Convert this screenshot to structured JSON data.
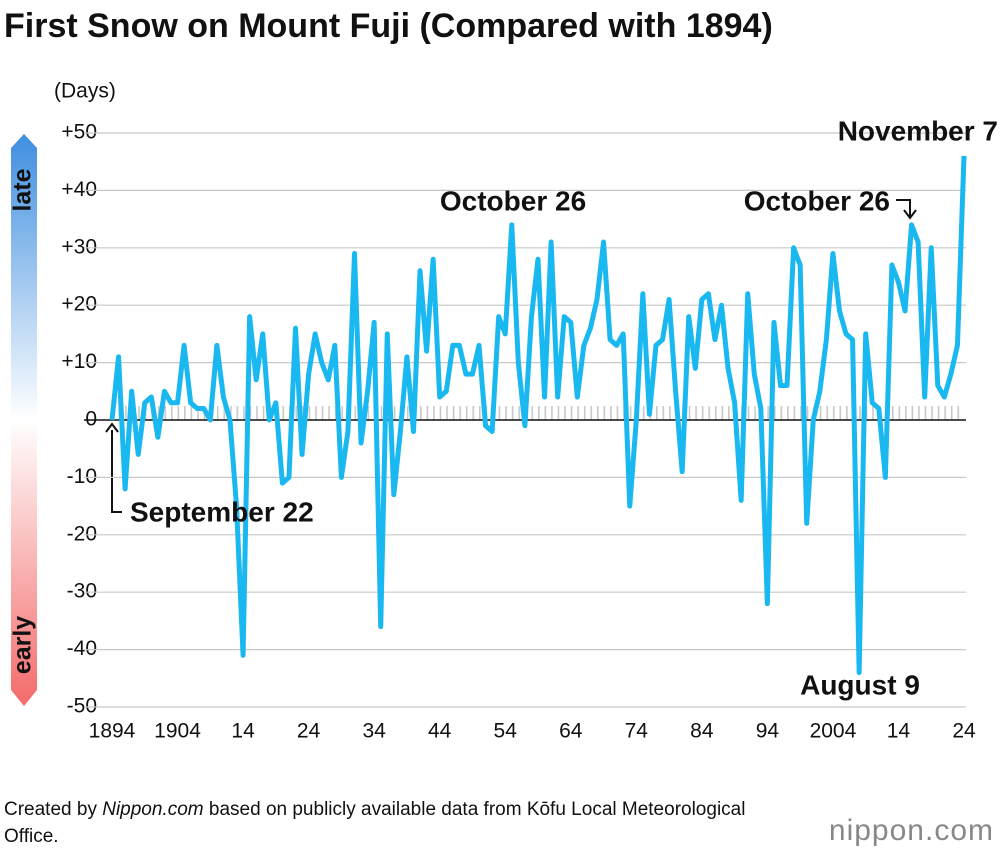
{
  "chart_data": {
    "type": "line",
    "title": "First Snow on Mount Fuji (Compared with 1894)",
    "y_axis_label": "(Days)",
    "late_label": "late",
    "early_label": "early",
    "annotations": [
      "September 22",
      "October 26",
      "October 26",
      "November 7",
      "August 9"
    ],
    "footer": {
      "prefix": "Created by",
      "source": "Nippon.com",
      "rest": "based on publicly available data from Kōfu Local Meteorological Office."
    },
    "logo": "nippon.com",
    "color": "#1ab8f0",
    "grid": true,
    "xlim": [
      1894,
      2024
    ],
    "xticks": [
      {
        "value": 1894,
        "label": "1894"
      },
      {
        "value": 1904,
        "label": "1904"
      },
      {
        "value": 1914,
        "label": "14"
      },
      {
        "value": 1924,
        "label": "24"
      },
      {
        "value": 1934,
        "label": "34"
      },
      {
        "value": 1944,
        "label": "44"
      },
      {
        "value": 1954,
        "label": "54"
      },
      {
        "value": 1964,
        "label": "64"
      },
      {
        "value": 1974,
        "label": "74"
      },
      {
        "value": 1984,
        "label": "84"
      },
      {
        "value": 1994,
        "label": "94"
      },
      {
        "value": 2004,
        "label": "2004"
      },
      {
        "value": 2014,
        "label": "14"
      },
      {
        "value": 2024,
        "label": "24"
      }
    ],
    "ylim": [
      -50,
      50
    ],
    "yticks": [
      -50,
      -40,
      -30,
      -20,
      -10,
      0,
      {
        "value": 10,
        "label": "+10"
      },
      {
        "value": 20,
        "label": "+20"
      },
      {
        "value": 30,
        "label": "+30"
      },
      {
        "value": 40,
        "label": "+40"
      },
      {
        "value": 50,
        "label": "+50"
      }
    ],
    "x": [
      1894,
      1895,
      1896,
      1897,
      1898,
      1899,
      1900,
      1901,
      1902,
      1903,
      1904,
      1905,
      1906,
      1907,
      1908,
      1909,
      1910,
      1911,
      1912,
      1913,
      1914,
      1915,
      1916,
      1917,
      1918,
      1919,
      1920,
      1921,
      1922,
      1923,
      1924,
      1925,
      1926,
      1927,
      1928,
      1929,
      1930,
      1931,
      1932,
      1933,
      1934,
      1935,
      1936,
      1937,
      1938,
      1939,
      1940,
      1941,
      1942,
      1943,
      1944,
      1945,
      1946,
      1947,
      1948,
      1949,
      1950,
      1951,
      1952,
      1953,
      1954,
      1955,
      1956,
      1957,
      1958,
      1959,
      1960,
      1961,
      1962,
      1963,
      1964,
      1965,
      1966,
      1967,
      1968,
      1969,
      1970,
      1971,
      1972,
      1973,
      1974,
      1975,
      1976,
      1977,
      1978,
      1979,
      1980,
      1981,
      1982,
      1983,
      1984,
      1985,
      1986,
      1987,
      1988,
      1989,
      1990,
      1991,
      1992,
      1993,
      1994,
      1995,
      1996,
      1997,
      1998,
      1999,
      2000,
      2001,
      2002,
      2003,
      2004,
      2005,
      2006,
      2007,
      2008,
      2009,
      2010,
      2011,
      2012,
      2013,
      2014,
      2015,
      2016,
      2017,
      2018,
      2019,
      2020,
      2021,
      2022,
      2023,
      2024
    ],
    "values": [
      0,
      11,
      -12,
      5,
      -6,
      3,
      4,
      -3,
      5,
      3,
      3,
      13,
      3,
      2,
      2,
      0,
      13,
      4,
      0,
      -15,
      -41,
      18,
      7,
      15,
      0,
      3,
      -11,
      -10,
      16,
      -6,
      8,
      15,
      10,
      7,
      13,
      -10,
      -2,
      29,
      -4,
      5,
      17,
      -36,
      15,
      -13,
      -2,
      11,
      -2,
      26,
      12,
      28,
      4,
      5,
      13,
      13,
      8,
      8,
      13,
      -1,
      -2,
      18,
      15,
      34,
      10,
      -1,
      18,
      28,
      4,
      31,
      4,
      18,
      17,
      4,
      13,
      16,
      21,
      31,
      14,
      13,
      15,
      -15,
      0,
      22,
      1,
      13,
      14,
      21,
      5,
      -9,
      18,
      9,
      21,
      22,
      14,
      20,
      9,
      3,
      -14,
      22,
      8,
      2,
      -32,
      17,
      6,
      6,
      30,
      27,
      -18,
      0,
      5,
      14,
      29,
      19,
      15,
      14,
      -44,
      15,
      3,
      2,
      -10,
      27,
      24,
      19,
      34,
      31,
      4,
      30,
      6,
      4,
      8,
      13,
      46
    ]
  }
}
